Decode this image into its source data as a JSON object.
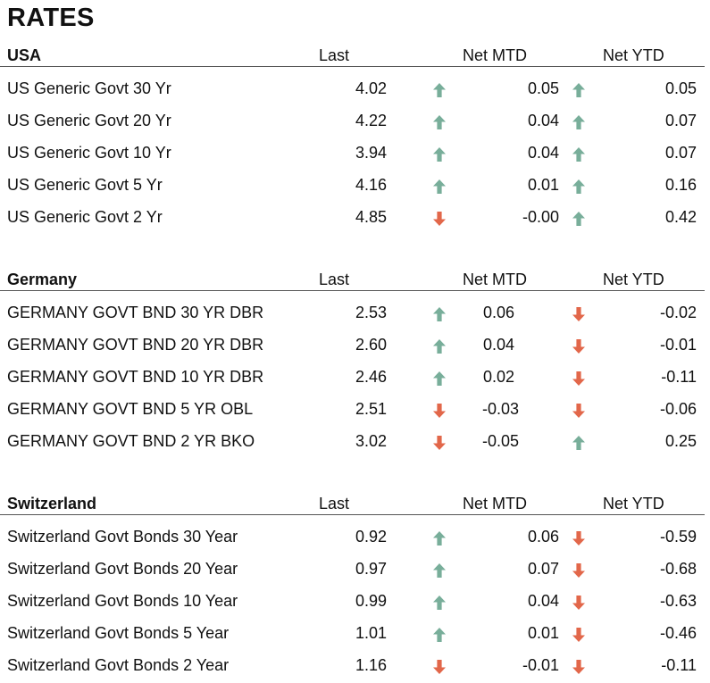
{
  "title": "RATES",
  "colors": {
    "up": "#78AE9A",
    "down": "#E2674A"
  },
  "sections": [
    {
      "name": "USA",
      "columns": [
        "Last",
        "Net MTD",
        "Net YTD"
      ],
      "rows": [
        {
          "label": "US Generic Govt 30 Yr",
          "last": "4.02",
          "mtd": "0.05",
          "mtd_dir": "up",
          "ytd": "0.05",
          "ytd_dir": "up"
        },
        {
          "label": "US Generic Govt 20 Yr",
          "last": "4.22",
          "mtd": "0.04",
          "mtd_dir": "up",
          "ytd": "0.07",
          "ytd_dir": "up"
        },
        {
          "label": "US Generic Govt 10 Yr",
          "last": "3.94",
          "mtd": "0.04",
          "mtd_dir": "up",
          "ytd": "0.07",
          "ytd_dir": "up"
        },
        {
          "label": "US Generic Govt 5 Yr",
          "last": "4.16",
          "mtd": "0.01",
          "mtd_dir": "up",
          "ytd": "0.16",
          "ytd_dir": "up"
        },
        {
          "label": "US Generic Govt 2 Yr",
          "last": "4.85",
          "mtd": "-0.00",
          "mtd_dir": "down",
          "ytd": "0.42",
          "ytd_dir": "up"
        }
      ]
    },
    {
      "name": "Germany",
      "columns": [
        "Last",
        "Net MTD",
        "Net YTD"
      ],
      "rows": [
        {
          "label": "GERMANY GOVT BND 30 YR DBR",
          "last": "2.53",
          "mtd": "0.06",
          "mtd_dir": "up",
          "ytd": "-0.02",
          "ytd_dir": "down"
        },
        {
          "label": "GERMANY GOVT BND 20 YR DBR",
          "last": "2.60",
          "mtd": "0.04",
          "mtd_dir": "up",
          "ytd": "-0.01",
          "ytd_dir": "down"
        },
        {
          "label": "GERMANY GOVT BND 10 YR DBR",
          "last": "2.46",
          "mtd": "0.02",
          "mtd_dir": "up",
          "ytd": "-0.11",
          "ytd_dir": "down"
        },
        {
          "label": "GERMANY GOVT BND 5 YR OBL",
          "last": "2.51",
          "mtd": "-0.03",
          "mtd_dir": "down",
          "ytd": "-0.06",
          "ytd_dir": "down"
        },
        {
          "label": "GERMANY GOVT BND 2 YR BKO",
          "last": "3.02",
          "mtd": "-0.05",
          "mtd_dir": "down",
          "ytd": "0.25",
          "ytd_dir": "up"
        }
      ]
    },
    {
      "name": "Switzerland",
      "columns": [
        "Last",
        "Net MTD",
        "Net YTD"
      ],
      "rows": [
        {
          "label": "Switzerland Govt Bonds 30 Year",
          "last": "0.92",
          "mtd": "0.06",
          "mtd_dir": "up",
          "ytd": "-0.59",
          "ytd_dir": "down"
        },
        {
          "label": "Switzerland Govt Bonds 20 Year",
          "last": "0.97",
          "mtd": "0.07",
          "mtd_dir": "up",
          "ytd": "-0.68",
          "ytd_dir": "down"
        },
        {
          "label": "Switzerland Govt Bonds 10 Year",
          "last": "0.99",
          "mtd": "0.04",
          "mtd_dir": "up",
          "ytd": "-0.63",
          "ytd_dir": "down"
        },
        {
          "label": "Switzerland Govt Bonds 5 Year",
          "last": "1.01",
          "mtd": "0.01",
          "mtd_dir": "up",
          "ytd": "-0.46",
          "ytd_dir": "down"
        },
        {
          "label": "Switzerland Govt Bonds 2 Year",
          "last": "1.16",
          "mtd": "-0.01",
          "mtd_dir": "down",
          "ytd": "-0.11",
          "ytd_dir": "down"
        }
      ]
    }
  ]
}
